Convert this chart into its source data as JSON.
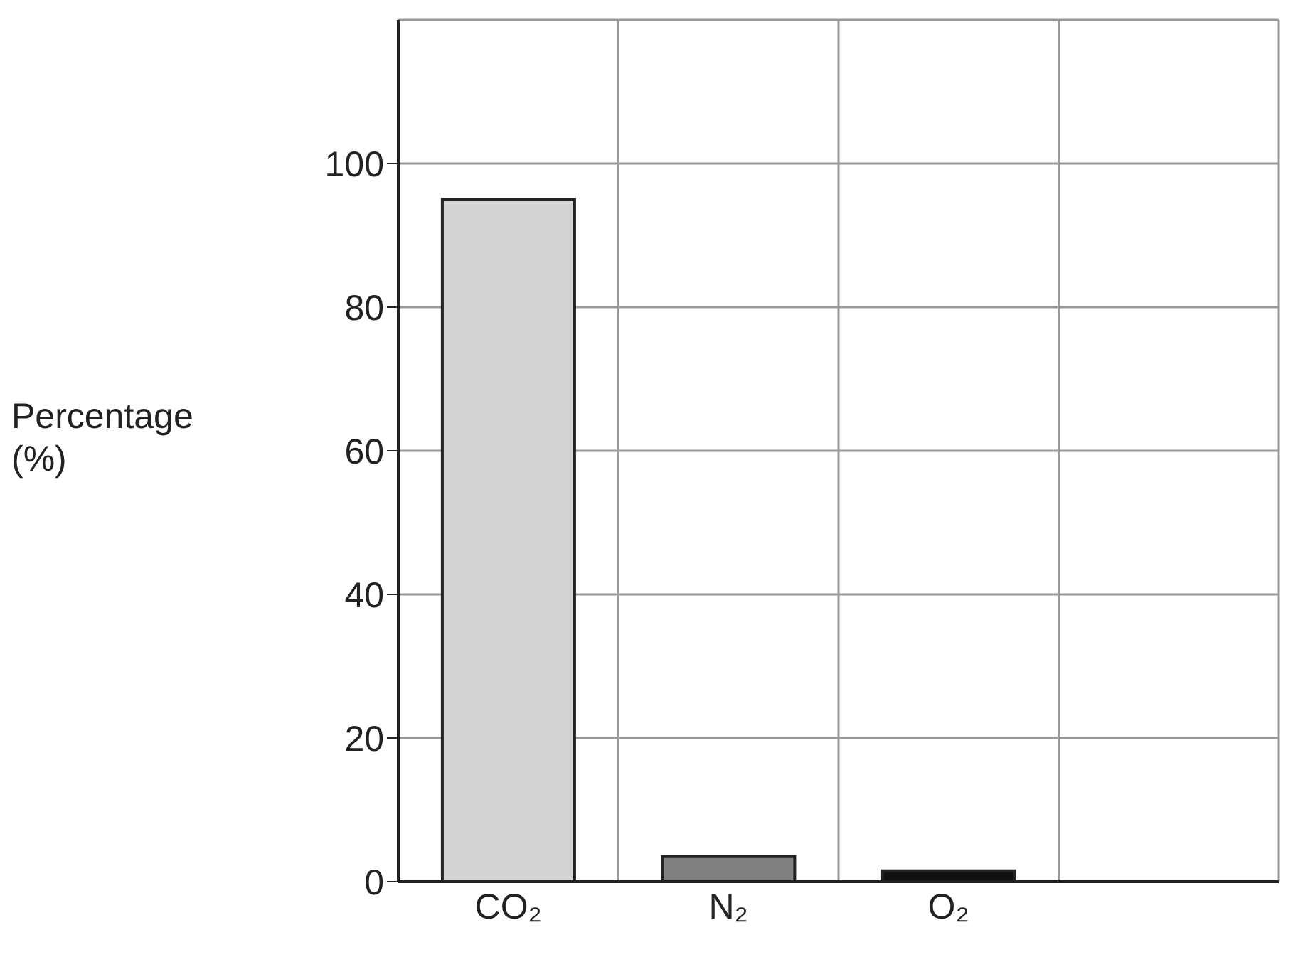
{
  "chart_data": {
    "type": "bar",
    "ylabel": "Percentage (%)",
    "categories": [
      "CO₂",
      "N₂",
      "O₂",
      null
    ],
    "values": [
      95,
      3.5,
      1.5,
      null
    ],
    "colors": [
      "#d3d3d3",
      "#808080",
      "#111111",
      "#000000"
    ],
    "ylim": [
      0,
      120
    ],
    "yticks": [
      0,
      20,
      40,
      60,
      80,
      100
    ],
    "grid": true
  }
}
